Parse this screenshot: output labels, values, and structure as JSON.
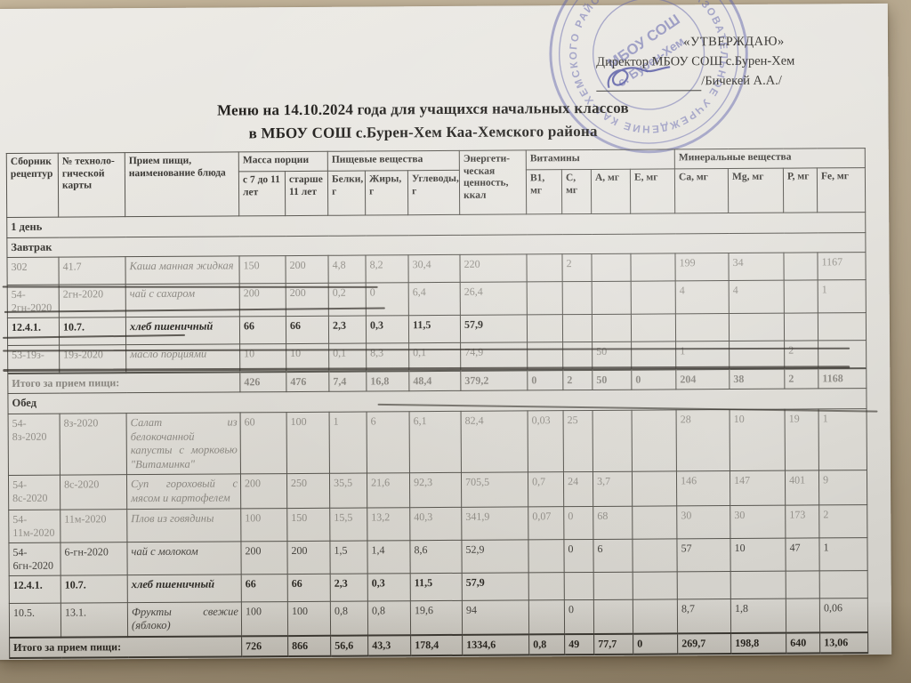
{
  "approval": {
    "line1": "«УТВЕРЖДАЮ»",
    "line2": "Директор МБОУ СОШ с.Бурен-Хем",
    "signer": "/Бичекей А.А./"
  },
  "stamp": {
    "ring_text": "ОБЩЕОБРАЗОВАТЕЛЬНОЕ УЧРЕЖДЕНИЕ КАА-ХЕМСКОГО РАЙОНА",
    "center_line1": "МБОУ СОШ",
    "center_line2": "с. Бурен-Хем",
    "color": "#5458a6"
  },
  "title": {
    "line1": "Меню на 14.10.2024 года для учащихся начальных классов",
    "line2": "в МБОУ СОШ с.Бурен-Хем Каа-Хемского района"
  },
  "table": {
    "header": {
      "col_recipes": "Сборник рецептур",
      "col_card": "№ техноло-гической карты",
      "col_meal": "Прием пищи, наименование блюда",
      "grp_mass": "Масса порции",
      "col_mass_young": "с 7 до 11 лет",
      "col_mass_old": "старше 11 лет",
      "grp_nutrients": "Пищевые вещества",
      "col_protein": "Белки, г",
      "col_fat": "Жиры, г",
      "col_carbs": "Углеводы, г",
      "col_energy": "Энергети-ческая ценность, ккал",
      "grp_vitamins": "Витамины",
      "col_b1": "В1, мг",
      "col_c": "С, мг",
      "col_a": "А, мг",
      "col_e": "Е, мг",
      "grp_minerals": "Минеральные вещества",
      "col_ca": "Са, мг",
      "col_mg": "Mg, мг",
      "col_p": "Р, мг",
      "col_fe": "Fe, мг"
    },
    "rows": [
      {
        "type": "section",
        "label": "1 день"
      },
      {
        "type": "section",
        "label": "Завтрак"
      },
      {
        "type": "dish",
        "look": "faded",
        "cells": [
          "302",
          "41.7",
          "Каша манная жидкая",
          "150",
          "200",
          "4,8",
          "8,2",
          "30,4",
          "220",
          "",
          "2",
          "",
          "",
          "199",
          "34",
          "",
          "1167"
        ]
      },
      {
        "type": "dish",
        "look": "faded",
        "cells": [
          "54-2гн-2020",
          "2гн-2020",
          "чай с сахаром",
          "200",
          "200",
          "0,2",
          "0",
          "6,4",
          "26,4",
          "",
          "",
          "",
          "",
          "4",
          "4",
          "",
          "1"
        ]
      },
      {
        "type": "dish",
        "look": "dark",
        "cells": [
          "12.4.1.",
          "10.7.",
          "хлеб пшеничный",
          "66",
          "66",
          "2,3",
          "0,3",
          "11,5",
          "57,9",
          "",
          "",
          "",
          "",
          "",
          "",
          "",
          ""
        ]
      },
      {
        "type": "dish",
        "look": "faded",
        "cells": [
          "53-19з-",
          "19з-2020",
          "масло порциями",
          "10",
          "10",
          "0,1",
          "8,3",
          "0,1",
          "74,9",
          "",
          "",
          "50",
          "",
          "1",
          "",
          "2",
          ""
        ]
      },
      {
        "type": "total",
        "look": "faded",
        "label": "Итого за прием пищи:",
        "values": [
          "426",
          "476",
          "7,4",
          "16,8",
          "48,4",
          "379,2",
          "0",
          "2",
          "50",
          "0",
          "204",
          "38",
          "2",
          "1168"
        ]
      },
      {
        "type": "section",
        "label": "Обед"
      },
      {
        "type": "dish",
        "look": "faded",
        "cells": [
          "54-8з-2020",
          "8з-2020",
          "Салат из белокочанной капусты с морковью \"Витаминка\"",
          "60",
          "100",
          "1",
          "6",
          "6,1",
          "82,4",
          "0,03",
          "25",
          "",
          "",
          "28",
          "10",
          "19",
          "1"
        ]
      },
      {
        "type": "dish",
        "look": "faded",
        "cells": [
          "54-8с-2020",
          "8с-2020",
          "Суп гороховый с мясом и картофелем",
          "200",
          "250",
          "35,5",
          "21,6",
          "92,3",
          "705,5",
          "0,7",
          "24",
          "3,7",
          "",
          "146",
          "147",
          "401",
          "9"
        ]
      },
      {
        "type": "dish",
        "look": "faded",
        "cells": [
          "54-11м-2020",
          "11м-2020",
          "Плов из говядины",
          "100",
          "150",
          "15,5",
          "13,2",
          "40,3",
          "341,9",
          "0,07",
          "0",
          "68",
          "",
          "30",
          "30",
          "173",
          "2"
        ]
      },
      {
        "type": "dish",
        "look": "normal",
        "cells": [
          "54-6гн-2020",
          "6-гн-2020",
          "чай с  молоком",
          "200",
          "200",
          "1,5",
          "1,4",
          "8,6",
          "52,9",
          "",
          "0",
          "6",
          "",
          "57",
          "10",
          "47",
          "1"
        ]
      },
      {
        "type": "dish",
        "look": "dark",
        "cells": [
          "12.4.1.",
          "10.7.",
          "хлеб пшеничный",
          "66",
          "66",
          "2,3",
          "0,3",
          "11,5",
          "57,9",
          "",
          "",
          "",
          "",
          "",
          "",
          "",
          ""
        ]
      },
      {
        "type": "dish",
        "look": "normal",
        "cells": [
          "10.5.",
          "13.1.",
          "Фрукты свежие (яблоко)",
          "100",
          "100",
          "0,8",
          "0,8",
          "19,6",
          "94",
          "",
          "0",
          "",
          "",
          "8,7",
          "1,8",
          "",
          "0,06"
        ]
      },
      {
        "type": "total",
        "look": "dark",
        "label": "Итого за прием пищи:",
        "values": [
          "726",
          "866",
          "56,6",
          "43,3",
          "178,4",
          "1334,6",
          "0,8",
          "49",
          "77,7",
          "0",
          "269,7",
          "198,8",
          "640",
          "13,06"
        ]
      }
    ]
  }
}
